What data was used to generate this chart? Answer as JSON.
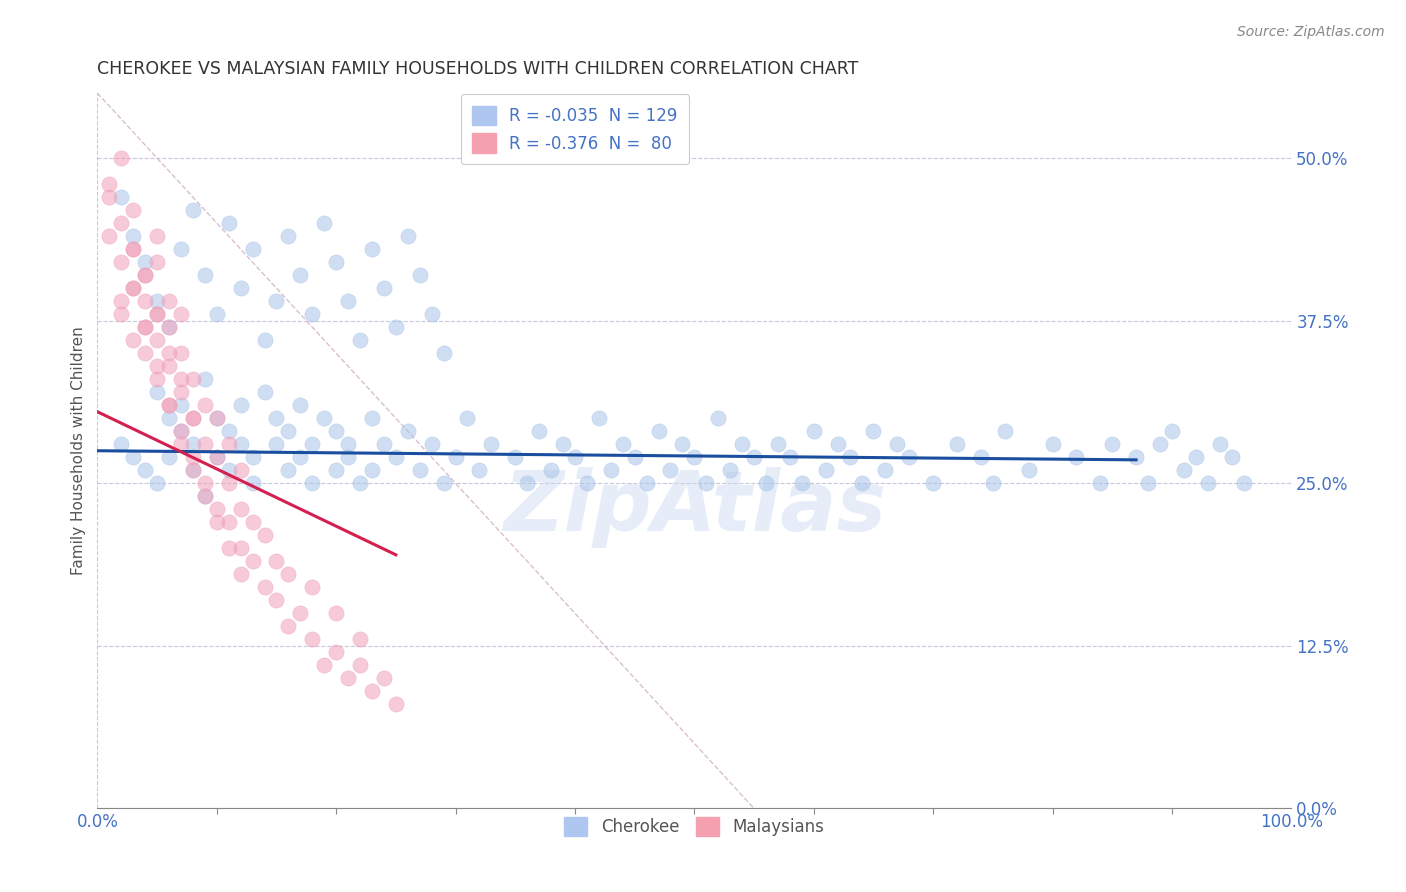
{
  "title": "CHEROKEE VS MALAYSIAN FAMILY HOUSEHOLDS WITH CHILDREN CORRELATION CHART",
  "source": "Source: ZipAtlas.com",
  "ylabel": "Family Households with Children",
  "xlim": [
    0.0,
    100.0
  ],
  "ylim": [
    0.0,
    55.0
  ],
  "yticks": [
    0.0,
    12.5,
    25.0,
    37.5,
    50.0
  ],
  "xticks": [
    0.0,
    100.0
  ],
  "cherokee_color": "#a8c4e8",
  "malaysian_color": "#f0a0b8",
  "cherokee_line_color": "#1a4fa0",
  "malaysian_line_color": "#d42050",
  "diagonal_line_color": "#d0b0c0",
  "background_color": "#ffffff",
  "grid_color": "#c8c8dc",
  "watermark_text": "ZipAtlas",
  "watermark_color": "#c8d8f0",
  "title_color": "#333333",
  "axis_color": "#4472c4",
  "source_color": "#888888",
  "cherokee_x": [
    2,
    3,
    4,
    5,
    5,
    6,
    6,
    7,
    7,
    8,
    8,
    9,
    9,
    10,
    10,
    11,
    11,
    12,
    12,
    13,
    13,
    14,
    15,
    15,
    16,
    16,
    17,
    17,
    18,
    18,
    19,
    20,
    20,
    21,
    21,
    22,
    23,
    23,
    24,
    25,
    26,
    27,
    28,
    29,
    30,
    31,
    32,
    33,
    35,
    36,
    37,
    38,
    39,
    40,
    41,
    42,
    43,
    44,
    45,
    46,
    47,
    48,
    49,
    50,
    51,
    52,
    53,
    54,
    55,
    56,
    57,
    58,
    59,
    60,
    61,
    62,
    63,
    64,
    65,
    66,
    67,
    68,
    70,
    72,
    74,
    75,
    76,
    78,
    80,
    82,
    84,
    85,
    87,
    88,
    89,
    90,
    91,
    92,
    93,
    94,
    95,
    96,
    2,
    3,
    4,
    5,
    6,
    7,
    8,
    9,
    10,
    11,
    12,
    13,
    14,
    15,
    16,
    17,
    18,
    19,
    20,
    21,
    22,
    23,
    24,
    25,
    26,
    27,
    28,
    29
  ],
  "cherokee_y": [
    28,
    27,
    26,
    32,
    25,
    30,
    27,
    29,
    31,
    28,
    26,
    33,
    24,
    27,
    30,
    29,
    26,
    28,
    31,
    27,
    25,
    32,
    28,
    30,
    26,
    29,
    27,
    31,
    25,
    28,
    30,
    26,
    29,
    27,
    28,
    25,
    30,
    26,
    28,
    27,
    29,
    26,
    28,
    25,
    27,
    30,
    26,
    28,
    27,
    25,
    29,
    26,
    28,
    27,
    25,
    30,
    26,
    28,
    27,
    25,
    29,
    26,
    28,
    27,
    25,
    30,
    26,
    28,
    27,
    25,
    28,
    27,
    25,
    29,
    26,
    28,
    27,
    25,
    29,
    26,
    28,
    27,
    25,
    28,
    27,
    25,
    29,
    26,
    28,
    27,
    25,
    28,
    27,
    25,
    28,
    29,
    26,
    27,
    25,
    28,
    27,
    25,
    47,
    44,
    42,
    39,
    37,
    43,
    46,
    41,
    38,
    45,
    40,
    43,
    36,
    39,
    44,
    41,
    38,
    45,
    42,
    39,
    36,
    43,
    40,
    37,
    44,
    41,
    38,
    35
  ],
  "malaysian_x": [
    1,
    1,
    2,
    2,
    2,
    3,
    3,
    3,
    3,
    4,
    4,
    4,
    4,
    5,
    5,
    5,
    5,
    5,
    6,
    6,
    6,
    6,
    7,
    7,
    7,
    7,
    8,
    8,
    8,
    9,
    9,
    9,
    10,
    10,
    10,
    11,
    11,
    11,
    12,
    12,
    12,
    13,
    13,
    14,
    14,
    15,
    15,
    16,
    16,
    17,
    18,
    18,
    19,
    20,
    20,
    21,
    22,
    22,
    23,
    24,
    25,
    3,
    4,
    5,
    6,
    7,
    8,
    2,
    1,
    3,
    4,
    5,
    6,
    7,
    8,
    9,
    10,
    11,
    12,
    2
  ],
  "malaysian_y": [
    48,
    44,
    42,
    38,
    50,
    36,
    40,
    43,
    46,
    35,
    39,
    37,
    41,
    33,
    36,
    38,
    42,
    44,
    31,
    34,
    37,
    39,
    29,
    32,
    35,
    38,
    27,
    30,
    33,
    25,
    28,
    31,
    23,
    27,
    30,
    22,
    25,
    28,
    20,
    23,
    26,
    19,
    22,
    17,
    21,
    16,
    19,
    14,
    18,
    15,
    13,
    17,
    11,
    12,
    15,
    10,
    11,
    13,
    9,
    10,
    8,
    43,
    41,
    38,
    35,
    33,
    30,
    45,
    47,
    40,
    37,
    34,
    31,
    28,
    26,
    24,
    22,
    20,
    18,
    39
  ]
}
